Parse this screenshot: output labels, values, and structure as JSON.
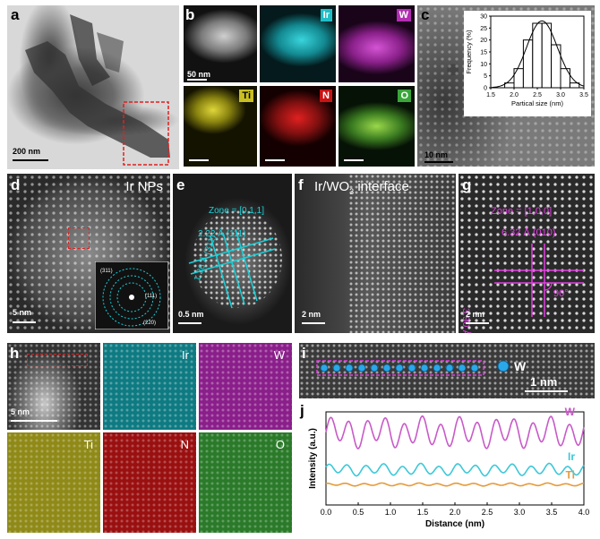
{
  "panel_labels": {
    "a": "a",
    "b": "b",
    "c": "c",
    "d": "d",
    "e": "e",
    "f": "f",
    "g": "g",
    "h": "h",
    "i": "i",
    "j": "j"
  },
  "scale_bars": {
    "a": "200 nm",
    "b": "50 nm",
    "c": "10 nm",
    "d": "5 nm",
    "e": "0.5 nm",
    "f": "2 nm",
    "g": "2 nm",
    "h": "5 nm",
    "i": "1 nm"
  },
  "element_tags": {
    "b": {
      "ir": "Ir",
      "w": "W",
      "ti": "Ti",
      "n": "N",
      "o": "O"
    },
    "h": {
      "ir": "Ir",
      "w": "W",
      "ti": "Ti",
      "n": "N",
      "o": "O"
    }
  },
  "colors": {
    "ir": "#1fbfc8",
    "w": "#b32db3",
    "ti": "#c9bf22",
    "n": "#c81414",
    "o": "#3aa63a",
    "annotation": "#19d0d8",
    "magenta": "#e040e0",
    "ti_line": "#e69a3a",
    "w_line": "#c85ac8",
    "ir_line": "#3cc8d8"
  },
  "panel_d": {
    "title": "Ir NPs",
    "fft": [
      "(311)",
      "(111)",
      "(220)"
    ]
  },
  "panel_e": {
    "zone": "Zone = [0,1,1]",
    "d1": "2.22 Å  (111)",
    "d2": "1.36 Å  (311)"
  },
  "panel_f": {
    "title_prefix": "Ir/WO",
    "title_sub": "3",
    "title_suffix": " interface"
  },
  "panel_g": {
    "zone": "Zone = [1,0,0]",
    "d_horizontal": "6.32 Å  (010)",
    "d_vertical": "3.90 Å  (001)",
    "angle": "90°"
  },
  "panel_i": {
    "atom_label": "W"
  },
  "chart_data": [
    {
      "type": "bar",
      "title": "",
      "xlabel": "Partical size (nm)",
      "ylabel": "Frequency (%)",
      "xlim": [
        1.5,
        3.5
      ],
      "ylim": [
        0,
        30
      ],
      "xticks": [
        "1.5",
        "2.0",
        "2.5",
        "3.0",
        "3.5"
      ],
      "yticks": [
        "0",
        "5",
        "10",
        "15",
        "20",
        "25",
        "30"
      ],
      "bins": [
        1.9,
        2.1,
        2.3,
        2.5,
        2.7,
        2.9,
        3.1,
        3.3
      ],
      "values": [
        2,
        8,
        20,
        27,
        27,
        18,
        8,
        2
      ],
      "fit": "gaussian"
    },
    {
      "type": "line",
      "title": "",
      "xlabel": "Distance (nm)",
      "ylabel": "Intensity (a.u.)",
      "xlim": [
        0.0,
        4.0
      ],
      "xticks": [
        "0.0",
        "0.5",
        "1.0",
        "1.5",
        "2.0",
        "2.5",
        "3.0",
        "3.5",
        "4.0"
      ],
      "series": [
        {
          "name": "W",
          "offset": 0.78,
          "amplitude": 0.13,
          "period": 0.285
        },
        {
          "name": "Ir",
          "offset": 0.38,
          "amplitude": 0.05,
          "period": 0.285
        },
        {
          "name": "Ti",
          "offset": 0.22,
          "amplitude": 0.012,
          "period": 0.285
        }
      ]
    }
  ]
}
